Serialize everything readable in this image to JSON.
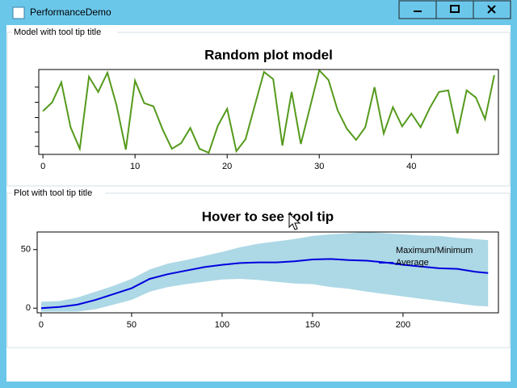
{
  "window": {
    "title": "PerformanceDemo"
  },
  "groups": [
    {
      "header": "Model with tool tip title"
    },
    {
      "header": "Plot with tool tip title"
    }
  ],
  "chart_data": [
    {
      "type": "line",
      "title": "Random plot model",
      "x": [
        0,
        1,
        2,
        3,
        4,
        5,
        6,
        7,
        8,
        9,
        10,
        11,
        12,
        13,
        14,
        15,
        16,
        17,
        18,
        19,
        20,
        21,
        22,
        23,
        24,
        25,
        26,
        27,
        28,
        29,
        30,
        31,
        32,
        33,
        34,
        35,
        36,
        37,
        38,
        39,
        40,
        41,
        42,
        43,
        44,
        45,
        46,
        47,
        48,
        49
      ],
      "series": [
        {
          "color": "#559a1c",
          "values": [
            0.53,
            0.64,
            0.89,
            0.33,
            0.06,
            0.96,
            0.77,
            1.01,
            0.6,
            0.05,
            0.91,
            0.63,
            0.59,
            0.3,
            0.06,
            0.13,
            0.32,
            0.06,
            0.01,
            0.35,
            0.56,
            0.03,
            0.18,
            0.6,
            1.02,
            0.93,
            0.1,
            0.77,
            0.12,
            0.58,
            1.04,
            0.92,
            0.54,
            0.31,
            0.17,
            0.33,
            0.83,
            0.25,
            0.58,
            0.34,
            0.5,
            0.33,
            0.57,
            0.77,
            0.79,
            0.25,
            0.79,
            0.7,
            0.43,
            0.98
          ]
        }
      ],
      "xlim": [
        -0.45,
        49.45
      ],
      "xticks": [
        0,
        10,
        20,
        30,
        40
      ],
      "ylim": [
        -0.01,
        1.05
      ],
      "yticks": [
        0.09,
        0.27,
        0.45,
        0.64,
        0.83
      ],
      "show_ytick_labels": false
    },
    {
      "type": "area-line",
      "title": "Hover to see tool tip",
      "x": [
        0,
        10,
        20,
        30,
        40,
        50,
        60,
        70,
        80,
        90,
        100,
        110,
        120,
        130,
        140,
        150,
        160,
        170,
        180,
        190,
        200,
        210,
        220,
        230,
        240,
        247
      ],
      "series": [
        {
          "name": "Maximum/Minimum",
          "color": "#add8e6",
          "upper": [
            5.5,
            6,
            9,
            14,
            19,
            25,
            33,
            38,
            41,
            44.5,
            48,
            52,
            55,
            57,
            59,
            61.6,
            63,
            64,
            65,
            64,
            63,
            62,
            61.6,
            60,
            59,
            58
          ],
          "lower": [
            -3,
            -3,
            -3,
            -1,
            3,
            7,
            14,
            18,
            20.5,
            22.5,
            24.5,
            25,
            24,
            22.5,
            21,
            20.5,
            18,
            16.5,
            14,
            12,
            10,
            8,
            6,
            4,
            2,
            1.4
          ]
        },
        {
          "name": "Average",
          "color": "#0000dd",
          "values": [
            0,
            1,
            3,
            7,
            12,
            17,
            25,
            29,
            32,
            35,
            37,
            38.5,
            39,
            39,
            40,
            41.5,
            42,
            41,
            40.5,
            39,
            37,
            35.5,
            34,
            33.5,
            31,
            30
          ]
        }
      ],
      "xlim": [
        -2.2,
        252.7
      ],
      "xticks": [
        0,
        50,
        100,
        150,
        200
      ],
      "ylim": [
        -4,
        65
      ],
      "yticks": [
        0,
        50
      ],
      "show_ytick_labels": true,
      "legend": "top-right"
    }
  ]
}
